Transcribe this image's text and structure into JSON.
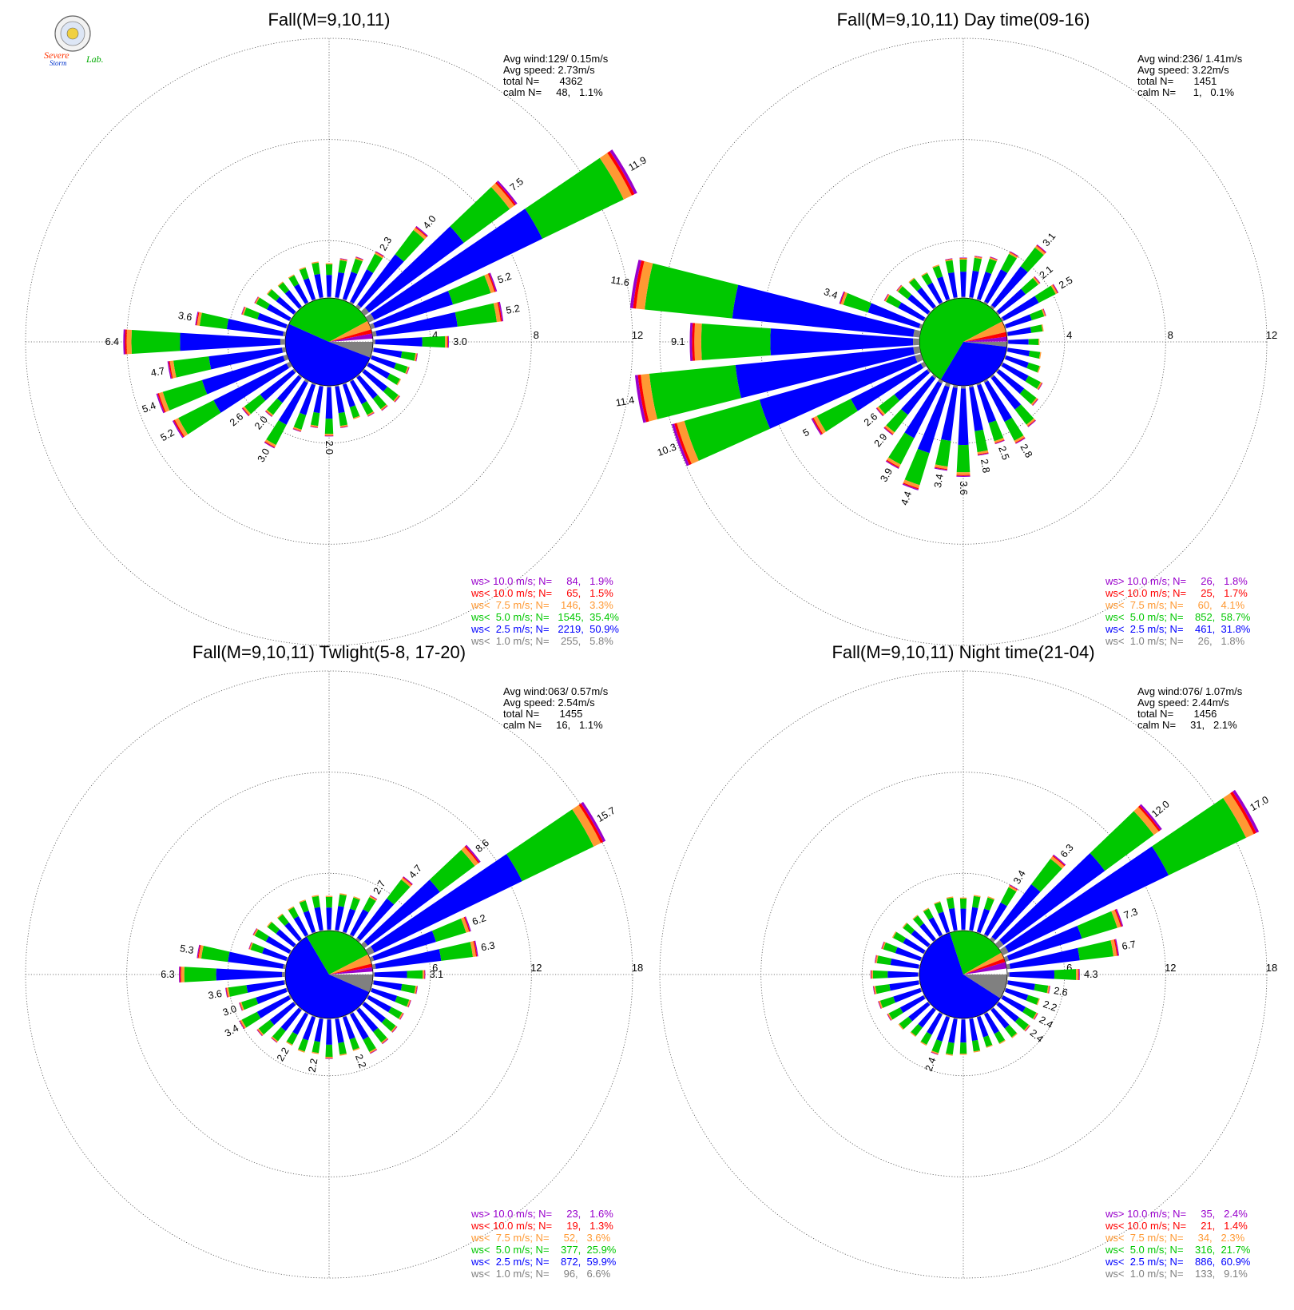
{
  "logo": {
    "text_lines": [
      "Severe",
      "Storm",
      "Lab."
    ]
  },
  "bin_colors": {
    "gray": "#808080",
    "blue": "#0000ff",
    "green": "#00c800",
    "orange": "#ff9933",
    "red": "#ff0000",
    "purple": "#9900cc"
  },
  "chart_data": [
    {
      "type": "wind-rose",
      "title": "Fall(M=9,10,11)",
      "stats": [
        "Avg wind:129/ 0.15m/s",
        "Avg speed: 2.73m/s",
        "total N=       4362",
        "calm N=     48,   1.1%"
      ],
      "ring_labels": [
        "4",
        "8",
        "12"
      ],
      "rmax": 12,
      "legend": [
        {
          "text": "ws> 10.0 m/s; N=     84,   1.9%",
          "color": "#9900cc"
        },
        {
          "text": "ws< 10.0 m/s; N=     65,   1.5%",
          "color": "#ff0000"
        },
        {
          "text": "ws<  7.5 m/s; N=    146,   3.3%",
          "color": "#ff9933"
        },
        {
          "text": "ws<  5.0 m/s; N=   1545,  35.4%",
          "color": "#00c800"
        },
        {
          "text": "ws<  2.5 m/s; N=   2219,  50.9%",
          "color": "#0000ff"
        },
        {
          "text": "ws<  1.0 m/s; N=    255,   5.8%",
          "color": "#808080"
        }
      ],
      "pie_percent": [
        5.8,
        50.9,
        35.4,
        3.3,
        1.5,
        1.9
      ],
      "directions": [
        {
          "deg": 0,
          "total": 1.4
        },
        {
          "deg": 10,
          "total": 1.6
        },
        {
          "deg": 20,
          "total": 1.8
        },
        {
          "deg": 30,
          "total": 2.3,
          "label": "2.3"
        },
        {
          "deg": 40,
          "total": 4.0,
          "label": "4.0"
        },
        {
          "deg": 50,
          "total": 7.5,
          "label": "7.5"
        },
        {
          "deg": 60,
          "total": 11.9,
          "label": "11.9"
        },
        {
          "deg": 70,
          "total": 5.2,
          "label": "5.2"
        },
        {
          "deg": 80,
          "total": 5.2,
          "label": "5.2"
        },
        {
          "deg": 90,
          "total": 3.0,
          "label": "3.0"
        },
        {
          "deg": 100,
          "total": 1.8
        },
        {
          "deg": 110,
          "total": 1.6
        },
        {
          "deg": 120,
          "total": 1.5
        },
        {
          "deg": 130,
          "total": 1.8
        },
        {
          "deg": 140,
          "total": 1.7
        },
        {
          "deg": 150,
          "total": 1.6
        },
        {
          "deg": 160,
          "total": 1.5
        },
        {
          "deg": 170,
          "total": 1.7
        },
        {
          "deg": 180,
          "total": 2.0,
          "label": "2.0"
        },
        {
          "deg": 190,
          "total": 1.7
        },
        {
          "deg": 200,
          "total": 2.0
        },
        {
          "deg": 210,
          "total": 3.0,
          "label": "3.0"
        },
        {
          "deg": 220,
          "total": 2.0,
          "label": "2.0"
        },
        {
          "deg": 230,
          "total": 2.6,
          "label": "2.6"
        },
        {
          "deg": 240,
          "total": 5.2,
          "label": "5.2"
        },
        {
          "deg": 250,
          "total": 5.4,
          "label": "5.4"
        },
        {
          "deg": 260,
          "total": 4.7,
          "label": "4.7"
        },
        {
          "deg": 270,
          "total": 6.4,
          "label": "6.4"
        },
        {
          "deg": 280,
          "total": 3.6,
          "label": "3.6"
        },
        {
          "deg": 290,
          "total": 1.9
        },
        {
          "deg": 300,
          "total": 1.6
        },
        {
          "deg": 310,
          "total": 1.4
        },
        {
          "deg": 320,
          "total": 1.3
        },
        {
          "deg": 330,
          "total": 1.3
        },
        {
          "deg": 340,
          "total": 1.4
        },
        {
          "deg": 350,
          "total": 1.5
        }
      ]
    },
    {
      "type": "wind-rose",
      "title": "Fall(M=9,10,11) Day time(09-16)",
      "stats": [
        "Avg wind:236/ 1.41m/s",
        "Avg speed: 3.22m/s",
        "total N=       1451",
        "calm N=      1,   0.1%"
      ],
      "ring_labels": [
        "4",
        "8",
        "12"
      ],
      "rmax": 12,
      "legend": [
        {
          "text": "ws> 10.0 m/s; N=     26,   1.8%",
          "color": "#9900cc"
        },
        {
          "text": "ws< 10.0 m/s; N=     25,   1.7%",
          "color": "#ff0000"
        },
        {
          "text": "ws<  7.5 m/s; N=     60,   4.1%",
          "color": "#ff9933"
        },
        {
          "text": "ws<  5.0 m/s; N=    852,  58.7%",
          "color": "#00c800"
        },
        {
          "text": "ws<  2.5 m/s; N=    461,  31.8%",
          "color": "#0000ff"
        },
        {
          "text": "ws<  1.0 m/s; N=     26,   1.8%",
          "color": "#808080"
        }
      ],
      "pie_percent": [
        1.8,
        31.8,
        58.7,
        4.1,
        1.7,
        1.8
      ],
      "directions": [
        {
          "deg": 0,
          "total": 1.6
        },
        {
          "deg": 10,
          "total": 1.7
        },
        {
          "deg": 20,
          "total": 1.8
        },
        {
          "deg": 30,
          "total": 2.3
        },
        {
          "deg": 40,
          "total": 3.1,
          "label": "3.1"
        },
        {
          "deg": 50,
          "total": 2.1,
          "label": "2.1"
        },
        {
          "deg": 60,
          "total": 2.5,
          "label": "2.5"
        },
        {
          "deg": 70,
          "total": 1.7
        },
        {
          "deg": 80,
          "total": 1.5
        },
        {
          "deg": 90,
          "total": 1.3
        },
        {
          "deg": 100,
          "total": 1.4
        },
        {
          "deg": 110,
          "total": 1.5
        },
        {
          "deg": 120,
          "total": 1.8
        },
        {
          "deg": 130,
          "total": 2.0
        },
        {
          "deg": 140,
          "total": 2.5
        },
        {
          "deg": 150,
          "total": 2.8,
          "label": "2.8"
        },
        {
          "deg": 160,
          "total": 2.5,
          "label": "2.5"
        },
        {
          "deg": 170,
          "total": 2.8,
          "label": "2.8"
        },
        {
          "deg": 180,
          "total": 3.6,
          "label": "3.6"
        },
        {
          "deg": 190,
          "total": 3.4,
          "label": "3.4"
        },
        {
          "deg": 200,
          "total": 4.4,
          "label": "4.4"
        },
        {
          "deg": 210,
          "total": 3.9,
          "label": "3.9"
        },
        {
          "deg": 220,
          "total": 2.9,
          "label": "2.9"
        },
        {
          "deg": 230,
          "total": 2.6,
          "label": "2.6"
        },
        {
          "deg": 240,
          "total": 5.0,
          "label": "5"
        },
        {
          "deg": 250,
          "total": 10.3,
          "label": "10.3"
        },
        {
          "deg": 260,
          "total": 11.4,
          "label": "11.4"
        },
        {
          "deg": 270,
          "total": 9.1,
          "label": "9.1"
        },
        {
          "deg": 280,
          "total": 11.6,
          "label": "11.6"
        },
        {
          "deg": 290,
          "total": 3.4,
          "label": "3.4"
        },
        {
          "deg": 300,
          "total": 1.8
        },
        {
          "deg": 310,
          "total": 1.6
        },
        {
          "deg": 320,
          "total": 1.5
        },
        {
          "deg": 330,
          "total": 1.4
        },
        {
          "deg": 340,
          "total": 1.5
        },
        {
          "deg": 350,
          "total": 1.6
        }
      ]
    },
    {
      "type": "wind-rose",
      "title": "Fall(M=9,10,11) Twlight(5-8, 17-20)",
      "stats": [
        "Avg wind:063/ 0.57m/s",
        "Avg speed: 2.54m/s",
        "total N=       1455",
        "calm N=     16,   1.1%"
      ],
      "ring_labels": [
        "6",
        "12",
        "18"
      ],
      "rmax": 18,
      "legend": [
        {
          "text": "ws> 10.0 m/s; N=     23,   1.6%",
          "color": "#9900cc"
        },
        {
          "text": "ws< 10.0 m/s; N=     19,   1.3%",
          "color": "#ff0000"
        },
        {
          "text": "ws<  7.5 m/s; N=     52,   3.6%",
          "color": "#ff9933"
        },
        {
          "text": "ws<  5.0 m/s; N=    377,  25.9%",
          "color": "#00c800"
        },
        {
          "text": "ws<  2.5 m/s; N=    872,  59.9%",
          "color": "#0000ff"
        },
        {
          "text": "ws<  1.0 m/s; N=     96,   6.6%",
          "color": "#808080"
        }
      ],
      "pie_percent": [
        6.6,
        59.9,
        25.9,
        3.6,
        1.3,
        1.6
      ],
      "directions": [
        {
          "deg": 0,
          "total": 2.1
        },
        {
          "deg": 10,
          "total": 2.3
        },
        {
          "deg": 20,
          "total": 2.3
        },
        {
          "deg": 30,
          "total": 2.7,
          "label": "2.7"
        },
        {
          "deg": 40,
          "total": 4.7,
          "label": "4.7"
        },
        {
          "deg": 50,
          "total": 8.6,
          "label": "8.6"
        },
        {
          "deg": 60,
          "total": 15.7,
          "label": "15.7"
        },
        {
          "deg": 70,
          "total": 6.2,
          "label": "6.2"
        },
        {
          "deg": 80,
          "total": 6.3,
          "label": "6.3"
        },
        {
          "deg": 90,
          "total": 3.1,
          "label": "3.1"
        },
        {
          "deg": 100,
          "total": 2.7
        },
        {
          "deg": 110,
          "total": 2.5
        },
        {
          "deg": 120,
          "total": 2.4
        },
        {
          "deg": 130,
          "total": 2.5
        },
        {
          "deg": 140,
          "total": 2.6
        },
        {
          "deg": 150,
          "total": 2.7
        },
        {
          "deg": 160,
          "total": 2.2,
          "label": "2.2"
        },
        {
          "deg": 170,
          "total": 2.3
        },
        {
          "deg": 180,
          "total": 2.4
        },
        {
          "deg": 190,
          "total": 2.2,
          "label": "2.2"
        },
        {
          "deg": 200,
          "total": 2.3
        },
        {
          "deg": 210,
          "total": 2.2,
          "label": "2.2"
        },
        {
          "deg": 220,
          "total": 2.5
        },
        {
          "deg": 230,
          "total": 2.8
        },
        {
          "deg": 240,
          "total": 3.4,
          "label": "3.4"
        },
        {
          "deg": 250,
          "total": 3.0,
          "label": "3.0"
        },
        {
          "deg": 260,
          "total": 3.6,
          "label": "3.6"
        },
        {
          "deg": 270,
          "total": 6.3,
          "label": "6.3"
        },
        {
          "deg": 280,
          "total": 5.3,
          "label": "5.3"
        },
        {
          "deg": 290,
          "total": 2.4
        },
        {
          "deg": 300,
          "total": 2.5
        },
        {
          "deg": 310,
          "total": 2.1
        },
        {
          "deg": 320,
          "total": 2.0
        },
        {
          "deg": 330,
          "total": 2.0
        },
        {
          "deg": 340,
          "total": 2.1
        },
        {
          "deg": 350,
          "total": 2.2
        }
      ]
    },
    {
      "type": "wind-rose",
      "title": "Fall(M=9,10,11) Night time(21-04)",
      "stats": [
        "Avg wind:076/ 1.07m/s",
        "Avg speed: 2.44m/s",
        "total N=       1456",
        "calm N=     31,   2.1%"
      ],
      "ring_labels": [
        "6",
        "12",
        "18"
      ],
      "rmax": 18,
      "legend": [
        {
          "text": "ws> 10.0 m/s; N=     35,   2.4%",
          "color": "#9900cc"
        },
        {
          "text": "ws< 10.0 m/s; N=     21,   1.4%",
          "color": "#ff0000"
        },
        {
          "text": "ws<  7.5 m/s; N=     34,   2.3%",
          "color": "#ff9933"
        },
        {
          "text": "ws<  5.0 m/s; N=    316,  21.7%",
          "color": "#00c800"
        },
        {
          "text": "ws<  2.5 m/s; N=    886,  60.9%",
          "color": "#0000ff"
        },
        {
          "text": "ws<  1.0 m/s; N=    133,   9.1%",
          "color": "#808080"
        }
      ],
      "pie_percent": [
        9.1,
        60.9,
        21.7,
        2.3,
        1.4,
        2.4
      ],
      "directions": [
        {
          "deg": 0,
          "total": 2.0
        },
        {
          "deg": 10,
          "total": 2.2
        },
        {
          "deg": 20,
          "total": 2.3
        },
        {
          "deg": 30,
          "total": 3.4,
          "label": "3.4"
        },
        {
          "deg": 40,
          "total": 6.3,
          "label": "6.3"
        },
        {
          "deg": 50,
          "total": 12.0,
          "label": "12.0"
        },
        {
          "deg": 60,
          "total": 17.0,
          "label": "17.0"
        },
        {
          "deg": 70,
          "total": 7.3,
          "label": "7.3"
        },
        {
          "deg": 80,
          "total": 6.7,
          "label": "6.7"
        },
        {
          "deg": 90,
          "total": 4.3,
          "label": "4.3"
        },
        {
          "deg": 100,
          "total": 2.6,
          "label": "2.6"
        },
        {
          "deg": 110,
          "total": 2.2,
          "label": "2.2"
        },
        {
          "deg": 120,
          "total": 2.4,
          "label": "2.4"
        },
        {
          "deg": 130,
          "total": 2.4,
          "label": "2.4"
        },
        {
          "deg": 140,
          "total": 2.2
        },
        {
          "deg": 150,
          "total": 2.1
        },
        {
          "deg": 160,
          "total": 2.0
        },
        {
          "deg": 170,
          "total": 2.1
        },
        {
          "deg": 180,
          "total": 2.2
        },
        {
          "deg": 190,
          "total": 2.3
        },
        {
          "deg": 200,
          "total": 2.4,
          "label": "2.4"
        },
        {
          "deg": 210,
          "total": 2.2
        },
        {
          "deg": 220,
          "total": 2.1
        },
        {
          "deg": 230,
          "total": 2.3
        },
        {
          "deg": 240,
          "total": 2.5
        },
        {
          "deg": 250,
          "total": 2.7
        },
        {
          "deg": 260,
          "total": 2.8
        },
        {
          "deg": 270,
          "total": 2.9
        },
        {
          "deg": 280,
          "total": 2.7
        },
        {
          "deg": 290,
          "total": 2.5
        },
        {
          "deg": 300,
          "total": 2.2
        },
        {
          "deg": 310,
          "total": 2.0
        },
        {
          "deg": 320,
          "total": 1.9
        },
        {
          "deg": 330,
          "total": 1.9
        },
        {
          "deg": 340,
          "total": 2.0
        },
        {
          "deg": 350,
          "total": 2.1
        }
      ]
    }
  ]
}
